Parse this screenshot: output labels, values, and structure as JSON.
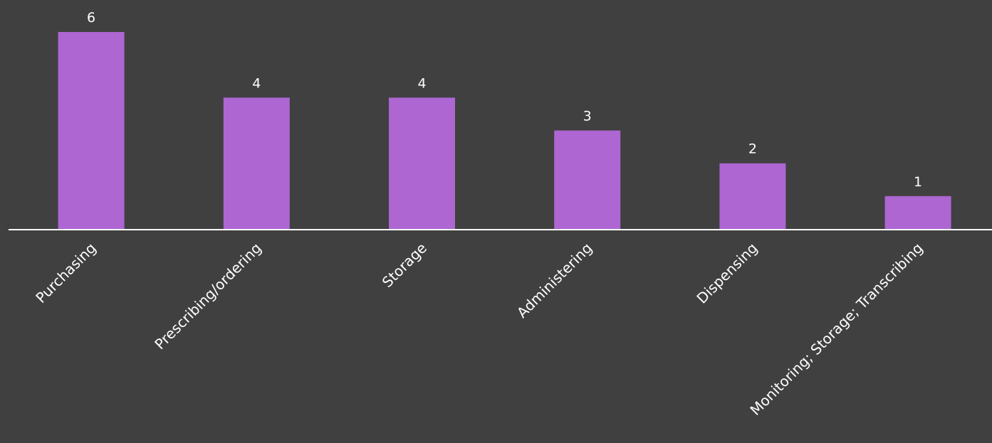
{
  "chart_data": {
    "type": "bar",
    "categories": [
      "Purchasing",
      "Prescribing/ordering",
      "Storage",
      "Administering",
      "Dispensing",
      "Monitoring; Storage; Transcribing"
    ],
    "values": [
      6,
      4,
      4,
      3,
      2,
      1
    ],
    "ylim": [
      0,
      6
    ],
    "grid": false,
    "legend": "none",
    "title": "",
    "xlabel": "",
    "ylabel": ""
  },
  "colors": {
    "background": "#404040",
    "bar": "#ad66d2",
    "axis": "#ffffff",
    "text": "#ffffff"
  }
}
